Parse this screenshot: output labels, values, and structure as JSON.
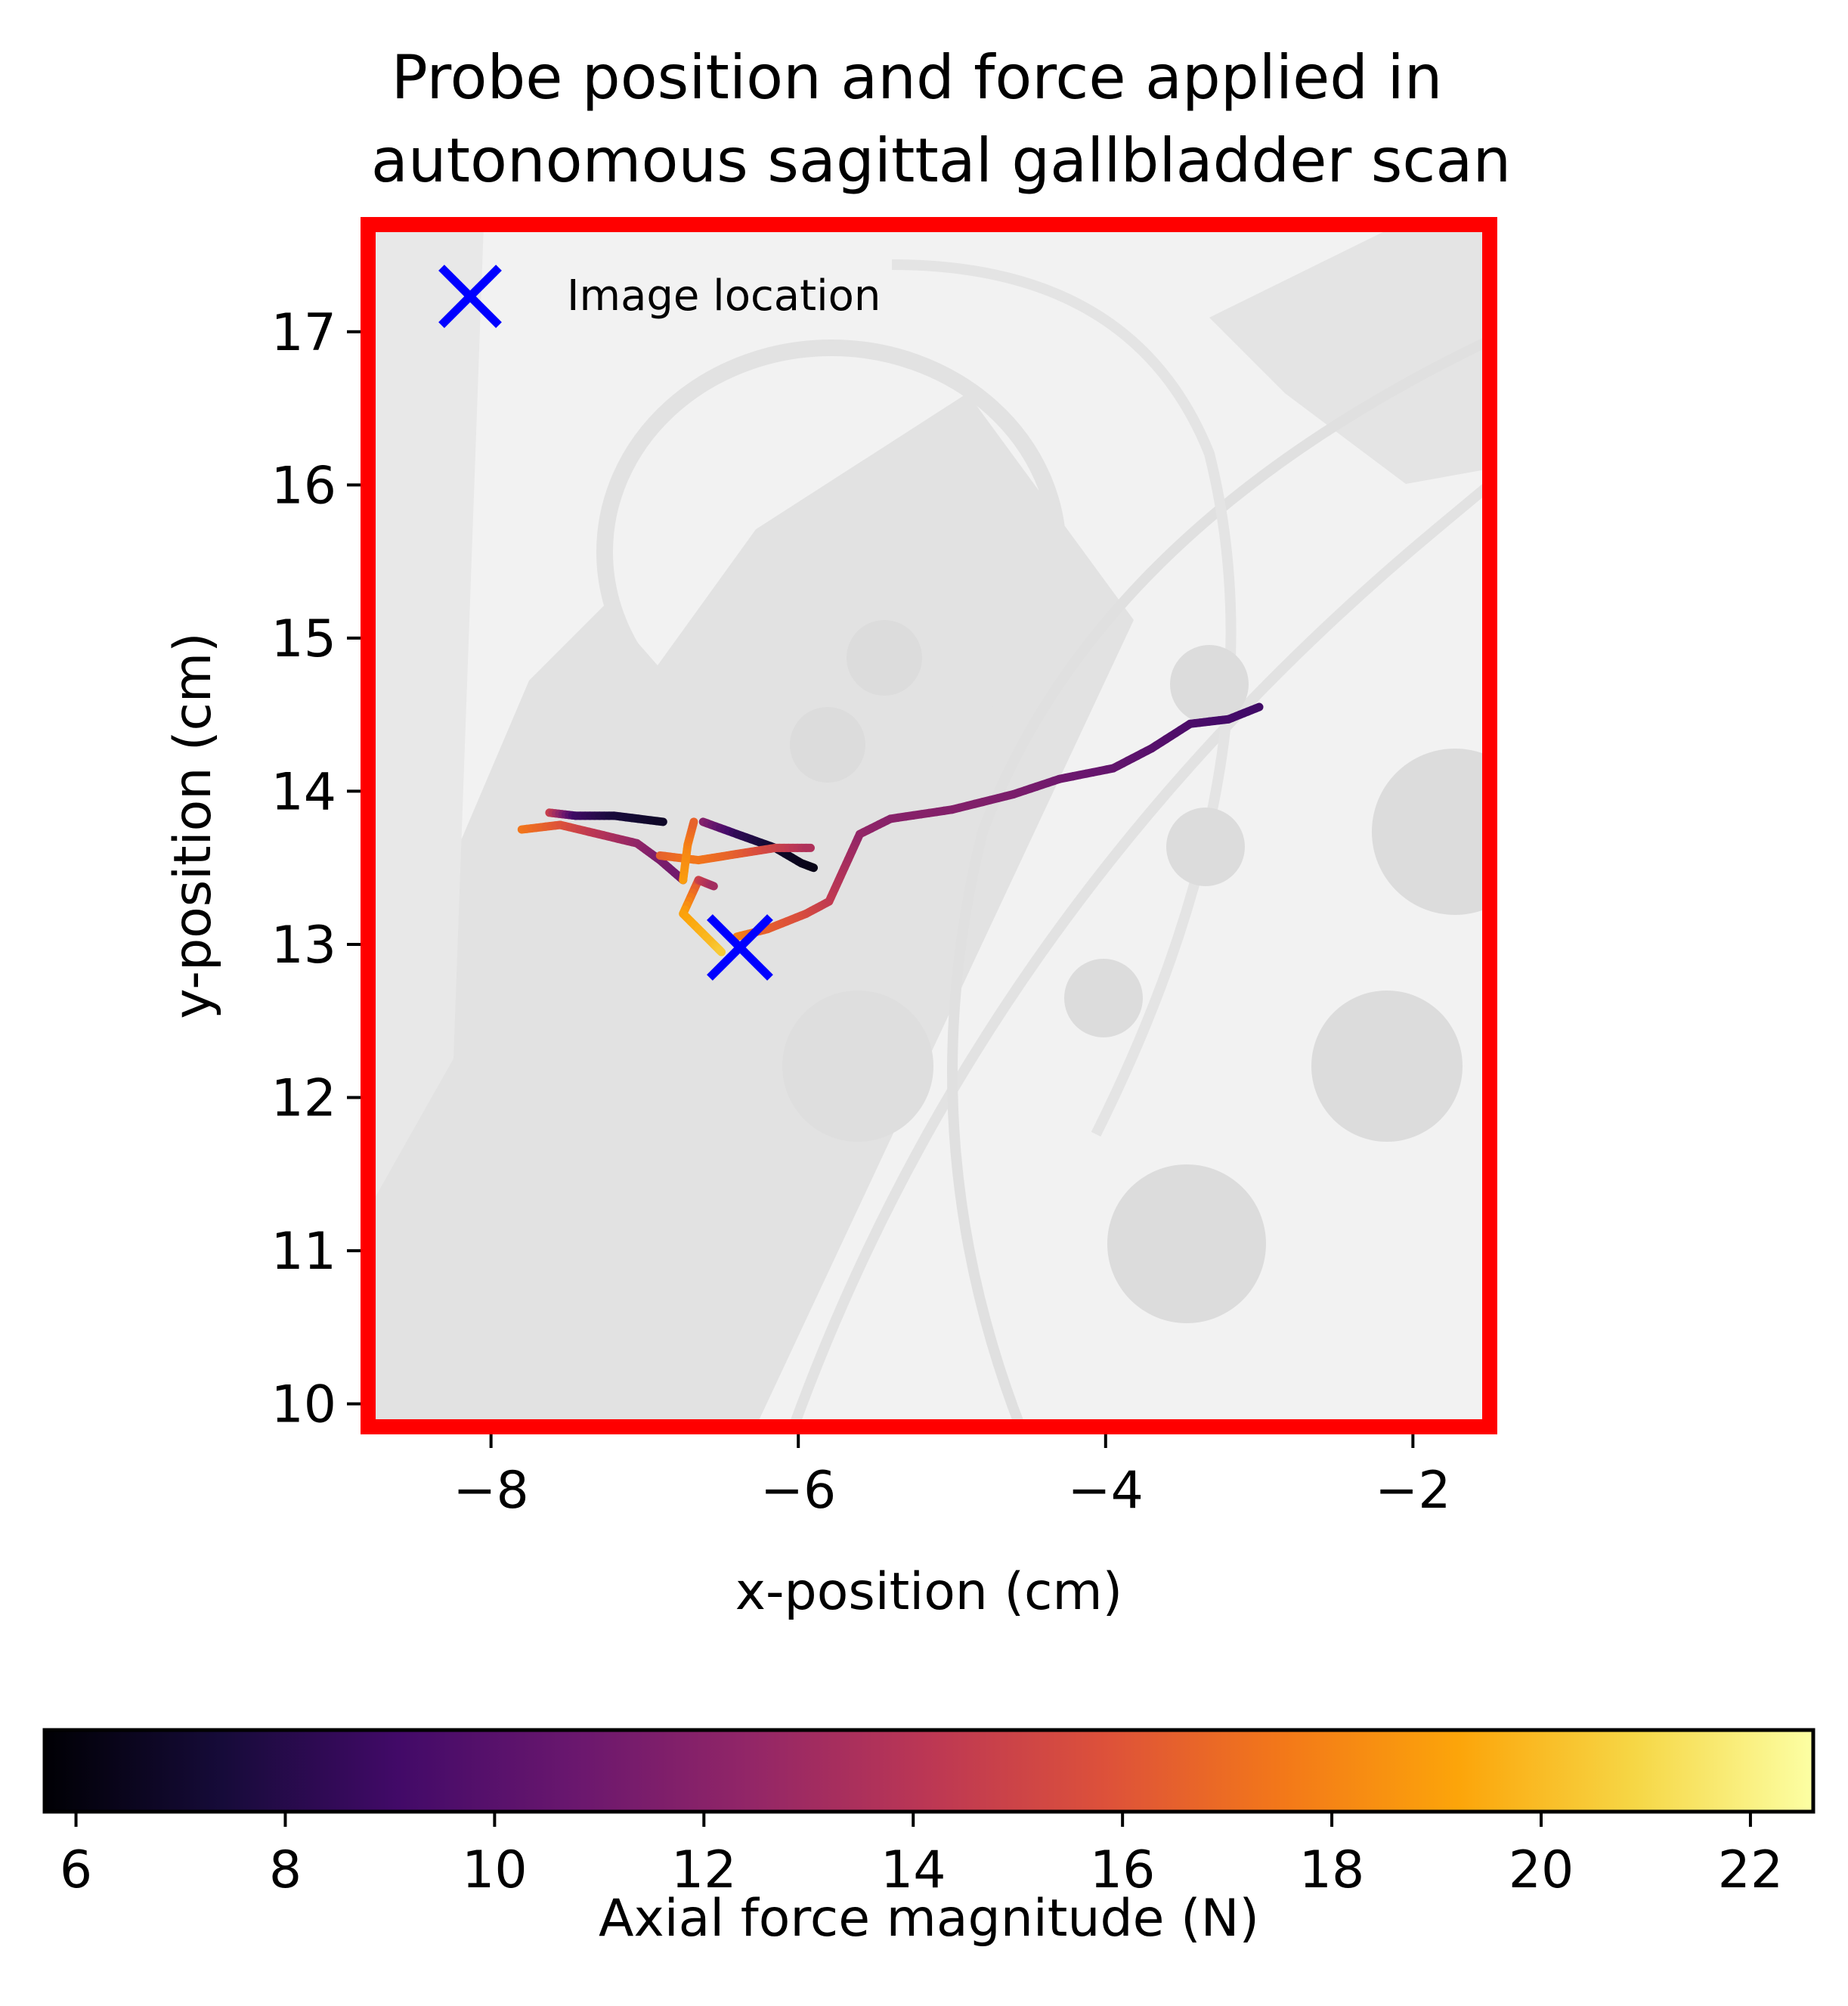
{
  "chart_data": {
    "type": "scatter",
    "title": "Probe position and force applied in\nautonomous sagittal gallbladder scan",
    "xlabel": "x-position (cm)",
    "ylabel": "y-position (cm)",
    "xlim": [
      -8.8,
      -1.5
    ],
    "ylim": [
      9.85,
      17.7
    ],
    "xticks": [
      -8,
      -6,
      -4,
      -2
    ],
    "xtick_labels": [
      "−8",
      "−6",
      "−4",
      "−2"
    ],
    "yticks": [
      10,
      11,
      12,
      13,
      14,
      15,
      16,
      17
    ],
    "ytick_labels": [
      "10",
      "11",
      "12",
      "13",
      "14",
      "15",
      "16",
      "17"
    ],
    "legend": {
      "position": "top-left",
      "entries": [
        "Image location"
      ]
    },
    "background": "grayscale anatomy image (phantom) behind the data",
    "frame_color": "#ff0000",
    "colorbar": {
      "label": "Axial force magnitude (N)",
      "colormap": "inferno",
      "range": [
        5.7,
        22.6
      ],
      "ticks": [
        6,
        8,
        10,
        12,
        14,
        16,
        18,
        20,
        22
      ],
      "tick_labels": [
        "6",
        "8",
        "10",
        "12",
        "14",
        "16",
        "18",
        "20",
        "22"
      ]
    },
    "image_location": {
      "x": -6.38,
      "y": 12.98,
      "color": "#0000ff",
      "marker": "x"
    },
    "series": [
      {
        "points": [
          [
            -6.4,
            13.05,
            18.0
          ],
          [
            -6.2,
            13.1,
            16.5
          ],
          [
            -5.95,
            13.2,
            15.5
          ],
          [
            -5.8,
            13.28,
            14.5
          ],
          [
            -5.7,
            13.5,
            13.5
          ],
          [
            -5.6,
            13.72,
            12.5
          ],
          [
            -5.4,
            13.82,
            12.0
          ],
          [
            -5.0,
            13.88,
            11.8
          ],
          [
            -4.6,
            13.98,
            11.5
          ],
          [
            -4.3,
            14.08,
            11.0
          ],
          [
            -3.95,
            14.15,
            10.5
          ],
          [
            -3.7,
            14.28,
            10.0
          ],
          [
            -3.45,
            14.44,
            9.5
          ],
          [
            -3.2,
            14.47,
            9.2
          ],
          [
            -3.0,
            14.55,
            9.0
          ]
        ]
      },
      {
        "points": [
          [
            -7.8,
            13.75,
            17.5
          ],
          [
            -7.55,
            13.78,
            16.0
          ],
          [
            -7.3,
            13.72,
            14.0
          ],
          [
            -7.05,
            13.66,
            12.5
          ],
          [
            -6.9,
            13.55,
            11.5
          ],
          [
            -6.75,
            13.42,
            11.0
          ]
        ]
      },
      {
        "points": [
          [
            -7.62,
            13.86,
            15.0
          ],
          [
            -7.45,
            13.84,
            9.0
          ],
          [
            -7.2,
            13.84,
            7.5
          ],
          [
            -6.88,
            13.8,
            6.8
          ]
        ]
      },
      {
        "points": [
          [
            -6.62,
            13.8,
            12.0
          ],
          [
            -6.4,
            13.72,
            8.5
          ],
          [
            -6.15,
            13.63,
            7.0
          ],
          [
            -5.98,
            13.53,
            6.5
          ],
          [
            -5.9,
            13.5,
            6.3
          ]
        ]
      },
      {
        "points": [
          [
            -6.9,
            13.58,
            16.5
          ],
          [
            -6.65,
            13.55,
            17.5
          ],
          [
            -6.4,
            13.59,
            16.5
          ],
          [
            -6.15,
            13.63,
            15.0
          ],
          [
            -5.92,
            13.63,
            13.5
          ]
        ]
      },
      {
        "points": [
          [
            -6.65,
            13.42,
            15.5
          ],
          [
            -6.75,
            13.2,
            19.0
          ],
          [
            -6.55,
            13.0,
            20.0
          ],
          [
            -6.5,
            12.95,
            20.5
          ]
        ]
      },
      {
        "points": [
          [
            -6.75,
            13.42,
            19.0
          ],
          [
            -6.72,
            13.65,
            18.0
          ],
          [
            -6.68,
            13.8,
            16.5
          ]
        ]
      },
      {
        "points": [
          [
            -6.65,
            13.42,
            15.0
          ],
          [
            -6.55,
            13.38,
            13.0
          ]
        ]
      }
    ]
  }
}
